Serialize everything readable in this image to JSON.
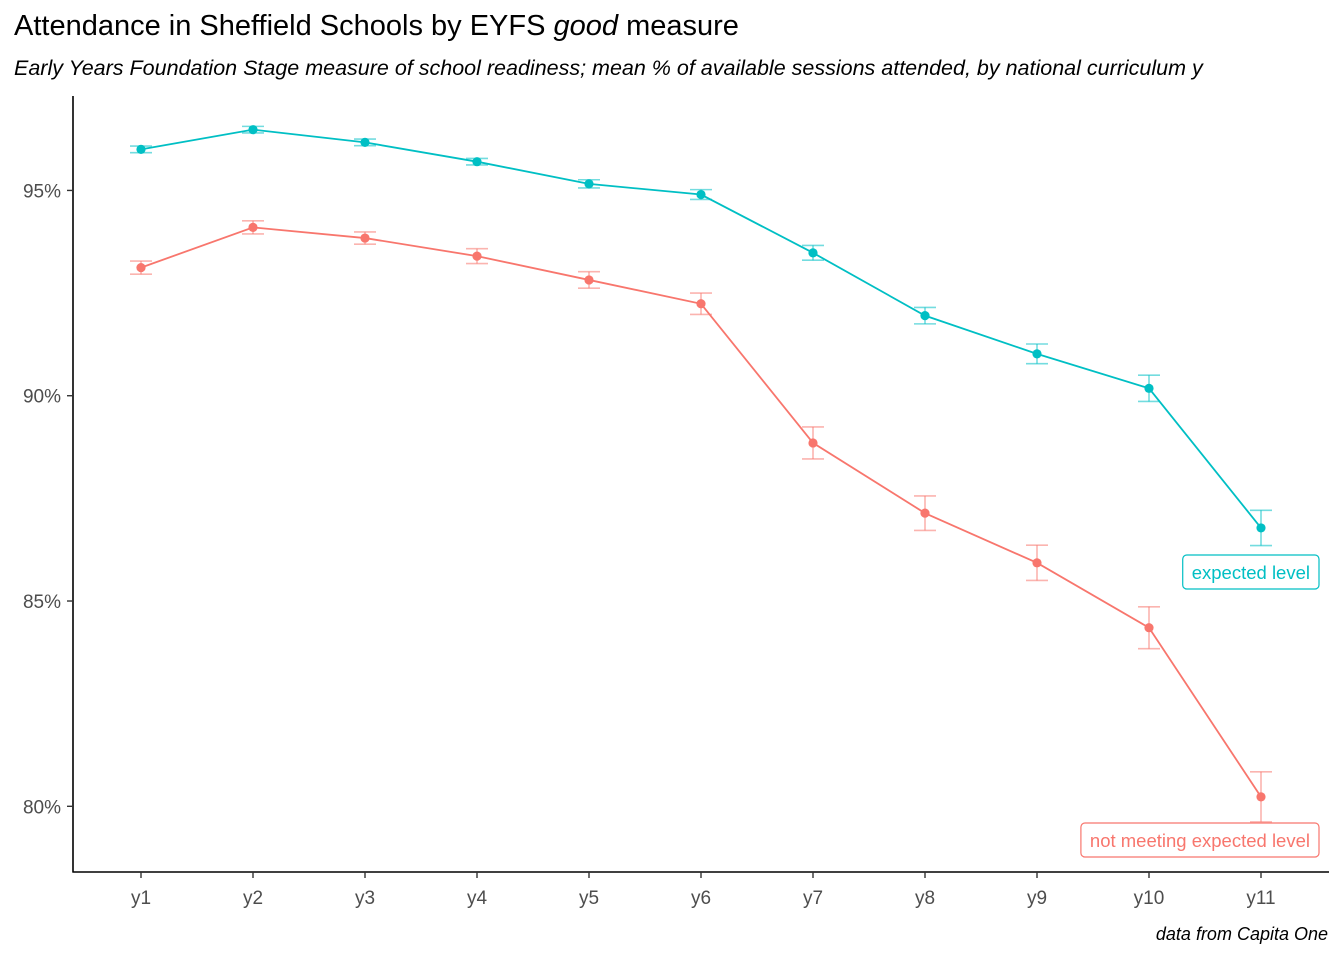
{
  "title_prefix": "Attendance in Sheffield Schools by EYFS ",
  "title_emphasis": "good",
  "title_suffix": " measure",
  "subtitle": "Early Years Foundation Stage measure of school readiness; mean % of available sessions attended, by national curriculum y",
  "caption": "data from Capita One",
  "chart_data": {
    "type": "line",
    "x": [
      "y1",
      "y2",
      "y3",
      "y4",
      "y5",
      "y6",
      "y7",
      "y8",
      "y9",
      "y10",
      "y11"
    ],
    "y_ticks": [
      80,
      85,
      90,
      95
    ],
    "y_tick_labels": [
      "80%",
      "85%",
      "90%",
      "95%"
    ],
    "ylim": [
      78.4,
      97.3
    ],
    "grid": false,
    "series": [
      {
        "name": "expected level",
        "color": "#00BFC4",
        "values": [
          96.0,
          96.48,
          96.17,
          95.7,
          95.16,
          94.9,
          93.48,
          91.95,
          91.02,
          90.18,
          86.78
        ],
        "lower": [
          95.92,
          96.4,
          96.09,
          95.62,
          95.06,
          94.78,
          93.3,
          91.75,
          90.78,
          89.86,
          86.35
        ],
        "upper": [
          96.08,
          96.56,
          96.25,
          95.78,
          95.26,
          95.02,
          93.66,
          92.15,
          91.26,
          90.5,
          87.21
        ]
      },
      {
        "name": "not meeting expected level",
        "color": "#F8766D",
        "values": [
          93.12,
          94.1,
          93.84,
          93.4,
          92.82,
          92.24,
          88.85,
          87.14,
          85.93,
          84.35,
          80.23
        ],
        "lower": [
          92.96,
          93.94,
          93.69,
          93.22,
          92.62,
          91.98,
          88.46,
          86.72,
          85.5,
          83.84,
          79.62
        ],
        "upper": [
          93.28,
          94.26,
          93.99,
          93.58,
          93.02,
          92.5,
          89.24,
          87.56,
          86.36,
          84.86,
          80.84
        ]
      }
    ]
  }
}
